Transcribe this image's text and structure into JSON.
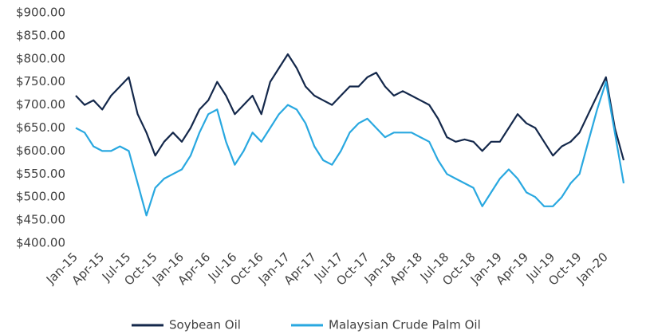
{
  "chart_data": {
    "type": "line",
    "categories": [
      "Jan-15",
      null,
      null,
      "Apr-15",
      null,
      null,
      "Jul-15",
      null,
      null,
      "Oct-15",
      null,
      null,
      "Jan-16",
      null,
      null,
      "Apr-16",
      null,
      null,
      "Jul-16",
      null,
      null,
      "Oct-16",
      null,
      null,
      "Jan-17",
      null,
      null,
      "Apr-17",
      null,
      null,
      "Jul-17",
      null,
      null,
      "Oct-17",
      null,
      null,
      "Jan-18",
      null,
      null,
      "Apr-18",
      null,
      null,
      "Jul-18",
      null,
      null,
      "Oct-18",
      null,
      null,
      "Jan-19",
      null,
      null,
      "Apr-19",
      null,
      null,
      "Jul-19",
      null,
      null,
      "Oct-19",
      null,
      null,
      "Jan-20",
      null,
      null
    ],
    "series": [
      {
        "name": "Soybean Oil",
        "color": "#14284b",
        "values": [
          720,
          700,
          710,
          690,
          720,
          740,
          760,
          680,
          640,
          590,
          620,
          640,
          620,
          650,
          690,
          710,
          750,
          720,
          680,
          700,
          720,
          680,
          750,
          780,
          810,
          780,
          740,
          720,
          710,
          700,
          720,
          740,
          740,
          760,
          770,
          740,
          720,
          730,
          720,
          710,
          700,
          670,
          630,
          620,
          625,
          620,
          600,
          620,
          620,
          650,
          680,
          660,
          650,
          620,
          590,
          610,
          620,
          640,
          680,
          720,
          760,
          650,
          580
        ]
      },
      {
        "name": "Malaysian Crude Palm Oil",
        "color": "#29a8e0",
        "values": [
          650,
          640,
          610,
          600,
          600,
          610,
          600,
          530,
          460,
          520,
          540,
          550,
          560,
          590,
          640,
          680,
          690,
          620,
          570,
          600,
          640,
          620,
          650,
          680,
          700,
          690,
          660,
          610,
          580,
          570,
          600,
          640,
          660,
          670,
          650,
          630,
          640,
          640,
          640,
          630,
          620,
          580,
          550,
          540,
          530,
          520,
          480,
          510,
          540,
          560,
          540,
          510,
          500,
          480,
          480,
          500,
          530,
          550,
          620,
          690,
          750,
          640,
          530
        ]
      }
    ],
    "ylim": [
      400,
      900
    ],
    "yticks": [
      {
        "value": 400,
        "label": "$400.00"
      },
      {
        "value": 450,
        "label": "$450.00"
      },
      {
        "value": 500,
        "label": "$500.00"
      },
      {
        "value": 550,
        "label": "$550.00"
      },
      {
        "value": 600,
        "label": "$600.00"
      },
      {
        "value": 650,
        "label": "$650.00"
      },
      {
        "value": 700,
        "label": "$700.00"
      },
      {
        "value": 750,
        "label": "$750.00"
      },
      {
        "value": 800,
        "label": "$800.00"
      },
      {
        "value": 850,
        "label": "$850.00"
      },
      {
        "value": 900,
        "label": "$900.00"
      }
    ],
    "grid": false,
    "legend": "bottom"
  }
}
